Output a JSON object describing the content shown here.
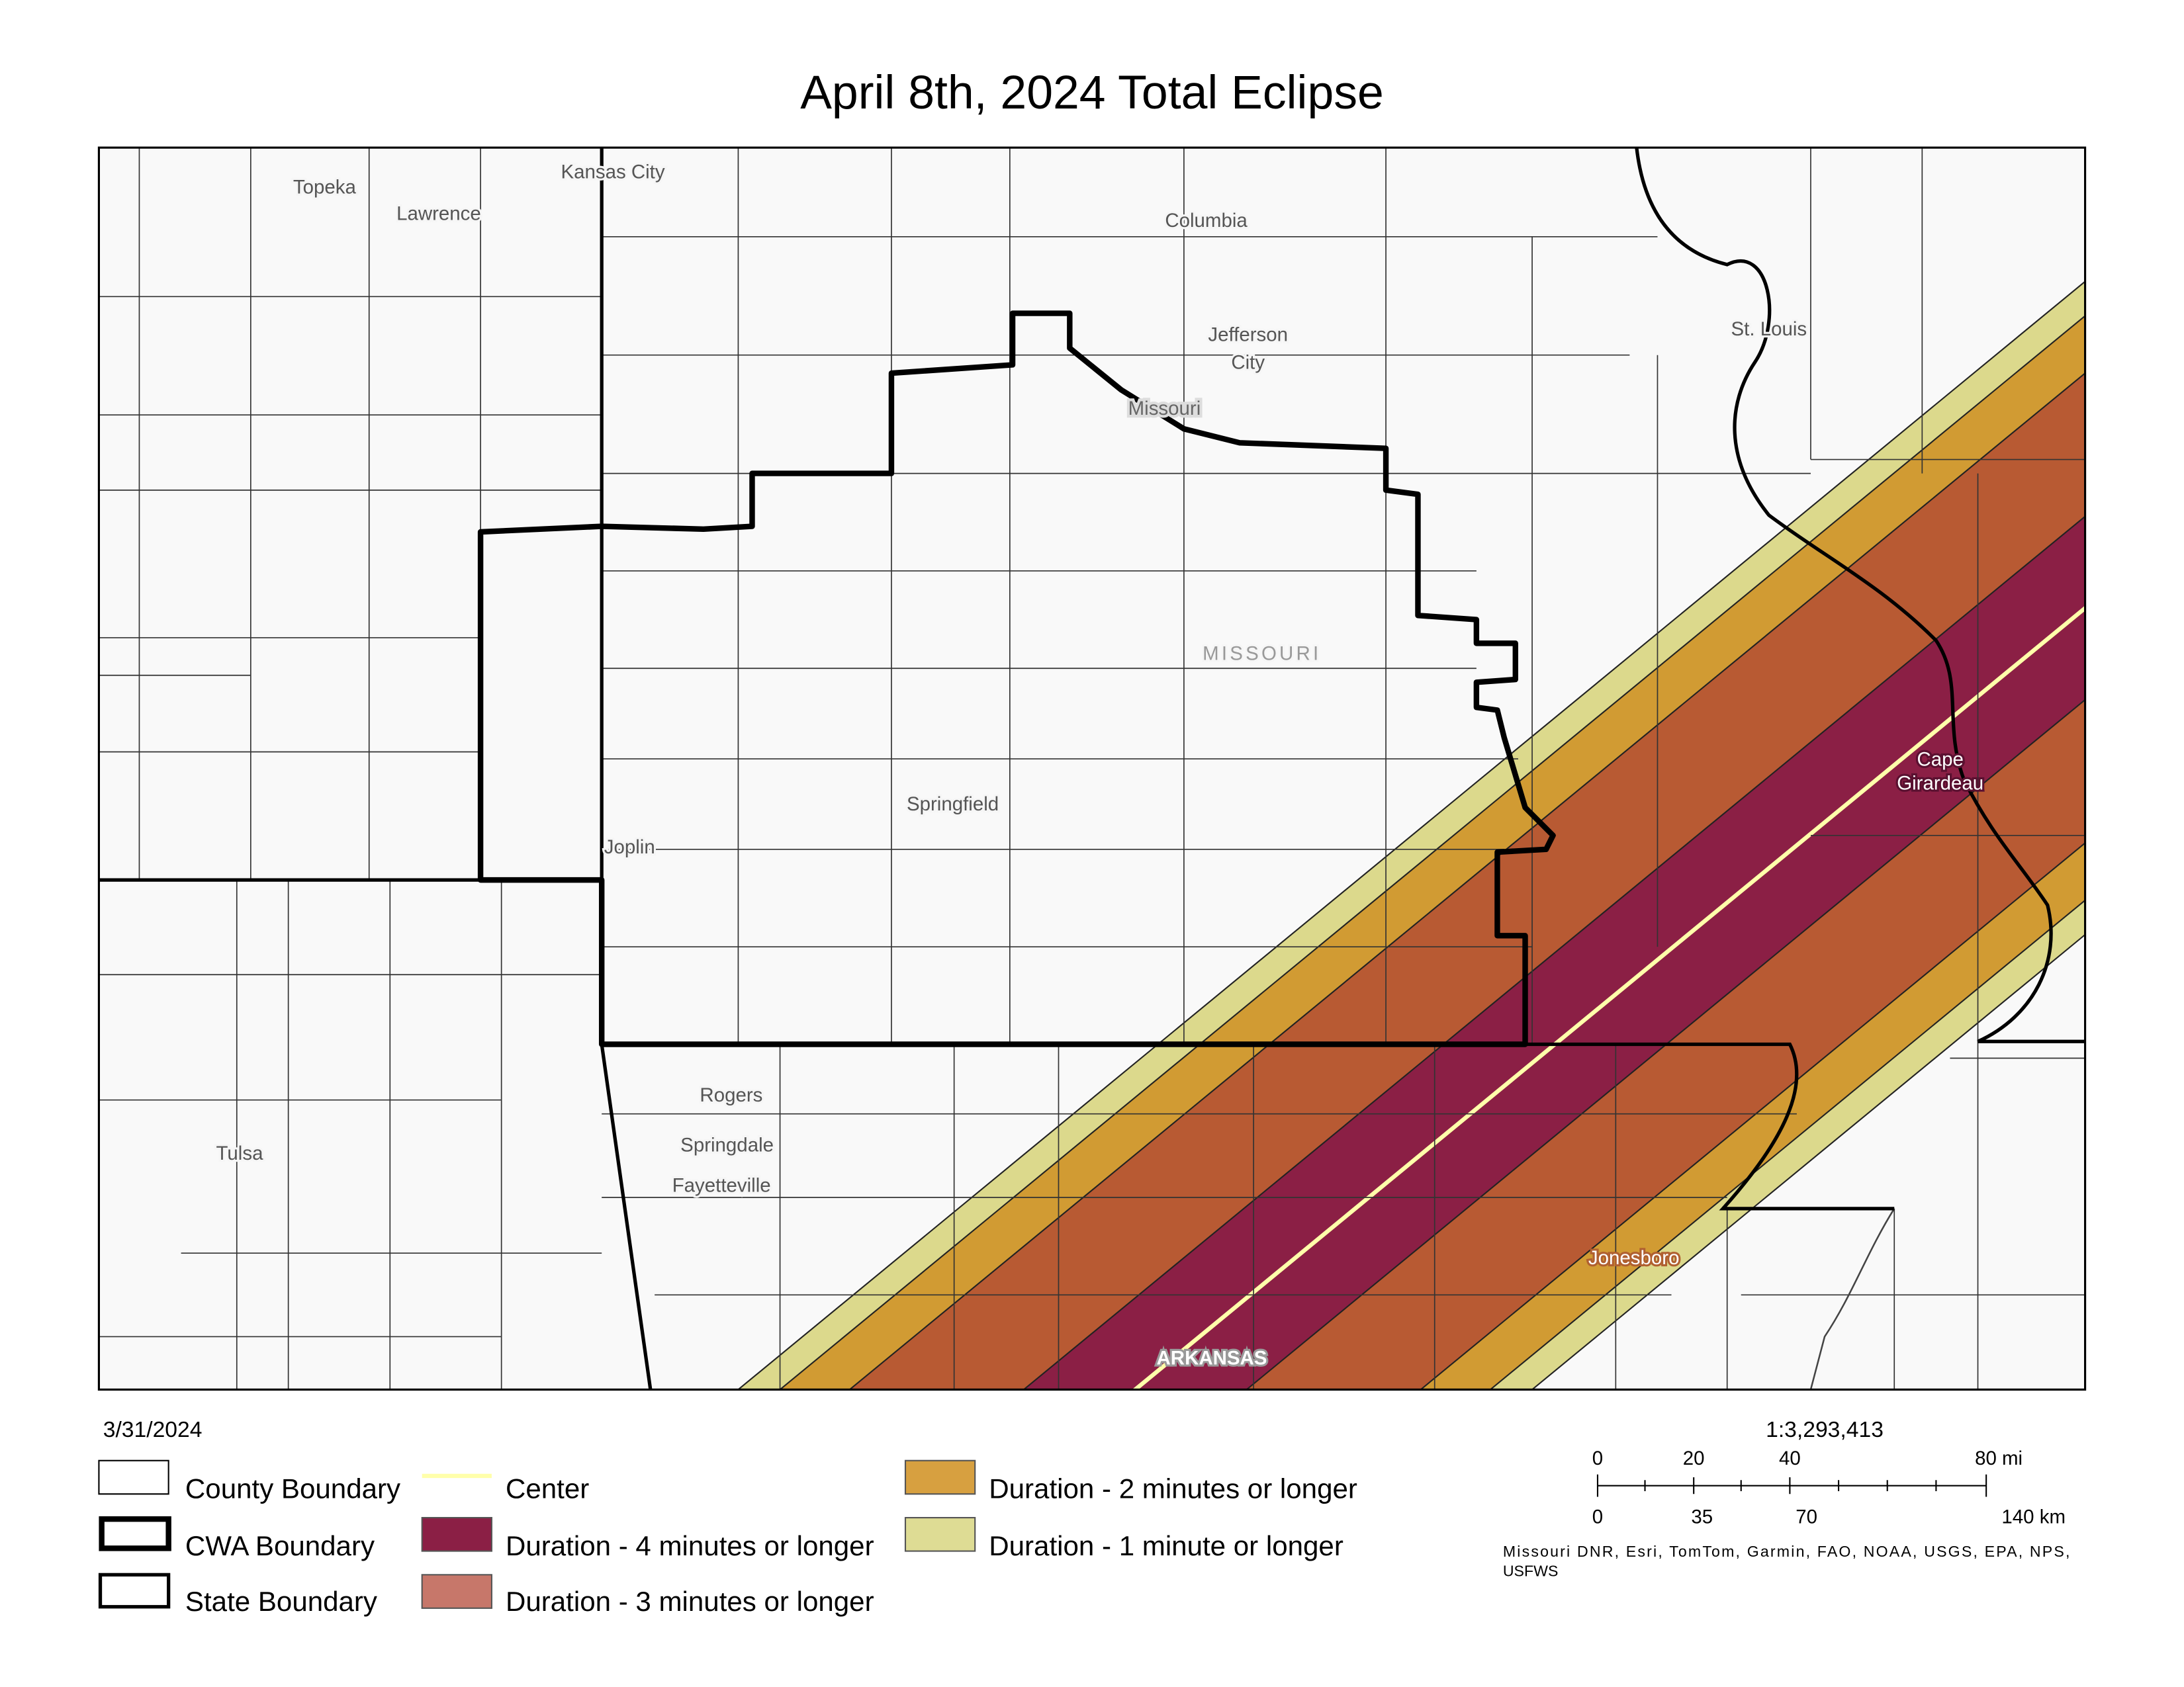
{
  "title": "April 8th, 2024 Total Eclipse",
  "date": "3/31/2024",
  "map": {
    "labels": {
      "topeka": "Topeka",
      "lawrence": "Lawrence",
      "kansas_city": "Kansas City",
      "columbia": "Columbia",
      "jefferson_city": [
        "Jefferson",
        "City"
      ],
      "missouri_city": "Missouri",
      "st_louis": "St. Louis",
      "missouri_state": "MISSOURI",
      "springfield": "Springfield",
      "joplin": "Joplin",
      "rogers": "Rogers",
      "springdale": "Springdale",
      "fayetteville": "Fayetteville",
      "tulsa": "Tulsa",
      "cape_girardeau": [
        "Cape",
        "Girardeau"
      ],
      "jonesboro": "Jonesboro",
      "arkansas": "ARKANSAS"
    }
  },
  "legend": {
    "items": [
      "County Boundary",
      "CWA Boundary",
      "State Boundary",
      "Center",
      "Duration - 4 minutes or longer",
      "Duration - 3 minutes or longer",
      "Duration - 2 minutes or longer",
      "Duration - 1 minute or longer"
    ]
  },
  "scale": {
    "ratio": "1:3,293,413",
    "miles": [
      "0",
      "20",
      "40",
      "80 mi"
    ],
    "kilometers": [
      "0",
      "35",
      "70",
      "140 km"
    ]
  },
  "attribution": [
    "Missouri DNR, Esri, TomTom, Garmin, FAO, NOAA, USGS, EPA, NPS,",
    "USFWS"
  ]
}
